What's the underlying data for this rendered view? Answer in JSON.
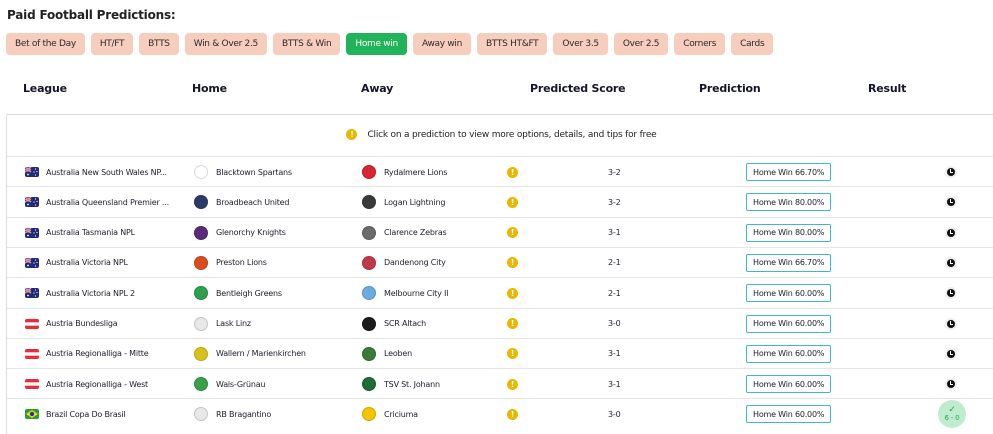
{
  "page": {
    "title": "Paid Football Predictions:"
  },
  "filters": [
    {
      "label": "Bet of the Day",
      "active": false
    },
    {
      "label": "HT/FT",
      "active": false
    },
    {
      "label": "BTTS",
      "active": false
    },
    {
      "label": "Win & Over 2.5",
      "active": false
    },
    {
      "label": "BTTS & Win",
      "active": false
    },
    {
      "label": "Home win",
      "active": true
    },
    {
      "label": "Away win",
      "active": false
    },
    {
      "label": "BTTS HT&FT",
      "active": false
    },
    {
      "label": "Over 3.5",
      "active": false
    },
    {
      "label": "Over 2.5",
      "active": false
    },
    {
      "label": "Corners",
      "active": false
    },
    {
      "label": "Cards",
      "active": false
    }
  ],
  "columns": {
    "league": "League",
    "home": "Home",
    "away": "Away",
    "score": "Predicted Score",
    "prediction": "Prediction",
    "result": "Result"
  },
  "info": {
    "text": "Click on a prediction to view more options, details, and tips for free"
  },
  "colors": {
    "chip": "#f7cdbd",
    "chip_active": "#21b35a",
    "info_icon": "#e9b600",
    "prediction_border": "#3fb8c9",
    "win_badge": "#bfeccf"
  },
  "rows": [
    {
      "country": "australia",
      "league": "Australia New South Wales NP...",
      "home": "Blacktown Spartans",
      "home_color": "#ffffff",
      "away": "Rydalmere Lions",
      "away_color": "#d9252f",
      "score": "3-2",
      "prediction": "Home Win 66.70%",
      "result": "pending",
      "result_text": ""
    },
    {
      "country": "australia",
      "league": "Australia Queensland Premier ...",
      "home": "Broadbeach United",
      "home_color": "#2b3a67",
      "away": "Logan Lightning",
      "away_color": "#3a3a3a",
      "score": "3-2",
      "prediction": "Home Win 80.00%",
      "result": "pending",
      "result_text": ""
    },
    {
      "country": "australia",
      "league": "Australia Tasmania NPL",
      "home": "Glenorchy Knights",
      "home_color": "#5a2a7a",
      "away": "Clarence Zebras",
      "away_color": "#6b6b6b",
      "score": "3-1",
      "prediction": "Home Win 80.00%",
      "result": "pending",
      "result_text": ""
    },
    {
      "country": "australia",
      "league": "Australia Victoria NPL",
      "home": "Preston Lions",
      "home_color": "#d94c1f",
      "away": "Dandenong City",
      "away_color": "#c0394a",
      "score": "2-1",
      "prediction": "Home Win 66.70%",
      "result": "pending",
      "result_text": ""
    },
    {
      "country": "australia",
      "league": "Australia Victoria NPL 2",
      "home": "Bentleigh Greens",
      "home_color": "#2e9e4f",
      "away": "Melbourne City II",
      "away_color": "#6cabdd",
      "score": "2-1",
      "prediction": "Home Win 60.00%",
      "result": "pending",
      "result_text": ""
    },
    {
      "country": "austria",
      "league": "Austria Bundesliga",
      "home": "Lask Linz",
      "home_color": "#e8e8e8",
      "away": "SCR Altach",
      "away_color": "#1c1c1c",
      "score": "3-0",
      "prediction": "Home Win 60.00%",
      "result": "pending",
      "result_text": ""
    },
    {
      "country": "austria",
      "league": "Austria Regionalliga - Mitte",
      "home": "Wallern / Marienkirchen",
      "home_color": "#d8c21a",
      "away": "Leoben",
      "away_color": "#3a7a3a",
      "score": "3-1",
      "prediction": "Home Win 60.00%",
      "result": "pending",
      "result_text": ""
    },
    {
      "country": "austria",
      "league": "Austria Regionalliga - West",
      "home": "Wals-Grünau",
      "home_color": "#3aa047",
      "away": "TSV St. Johann",
      "away_color": "#1f6b3a",
      "score": "3-1",
      "prediction": "Home Win 60.00%",
      "result": "pending",
      "result_text": ""
    },
    {
      "country": "brazil",
      "league": "Brazil Copa Do Brasil",
      "home": "RB Bragantino",
      "home_color": "#e8e8e8",
      "away": "Criciuma",
      "away_color": "#f2c500",
      "score": "3-0",
      "prediction": "Home Win 60.00%",
      "result": "won",
      "result_text": "6 - 0"
    }
  ]
}
